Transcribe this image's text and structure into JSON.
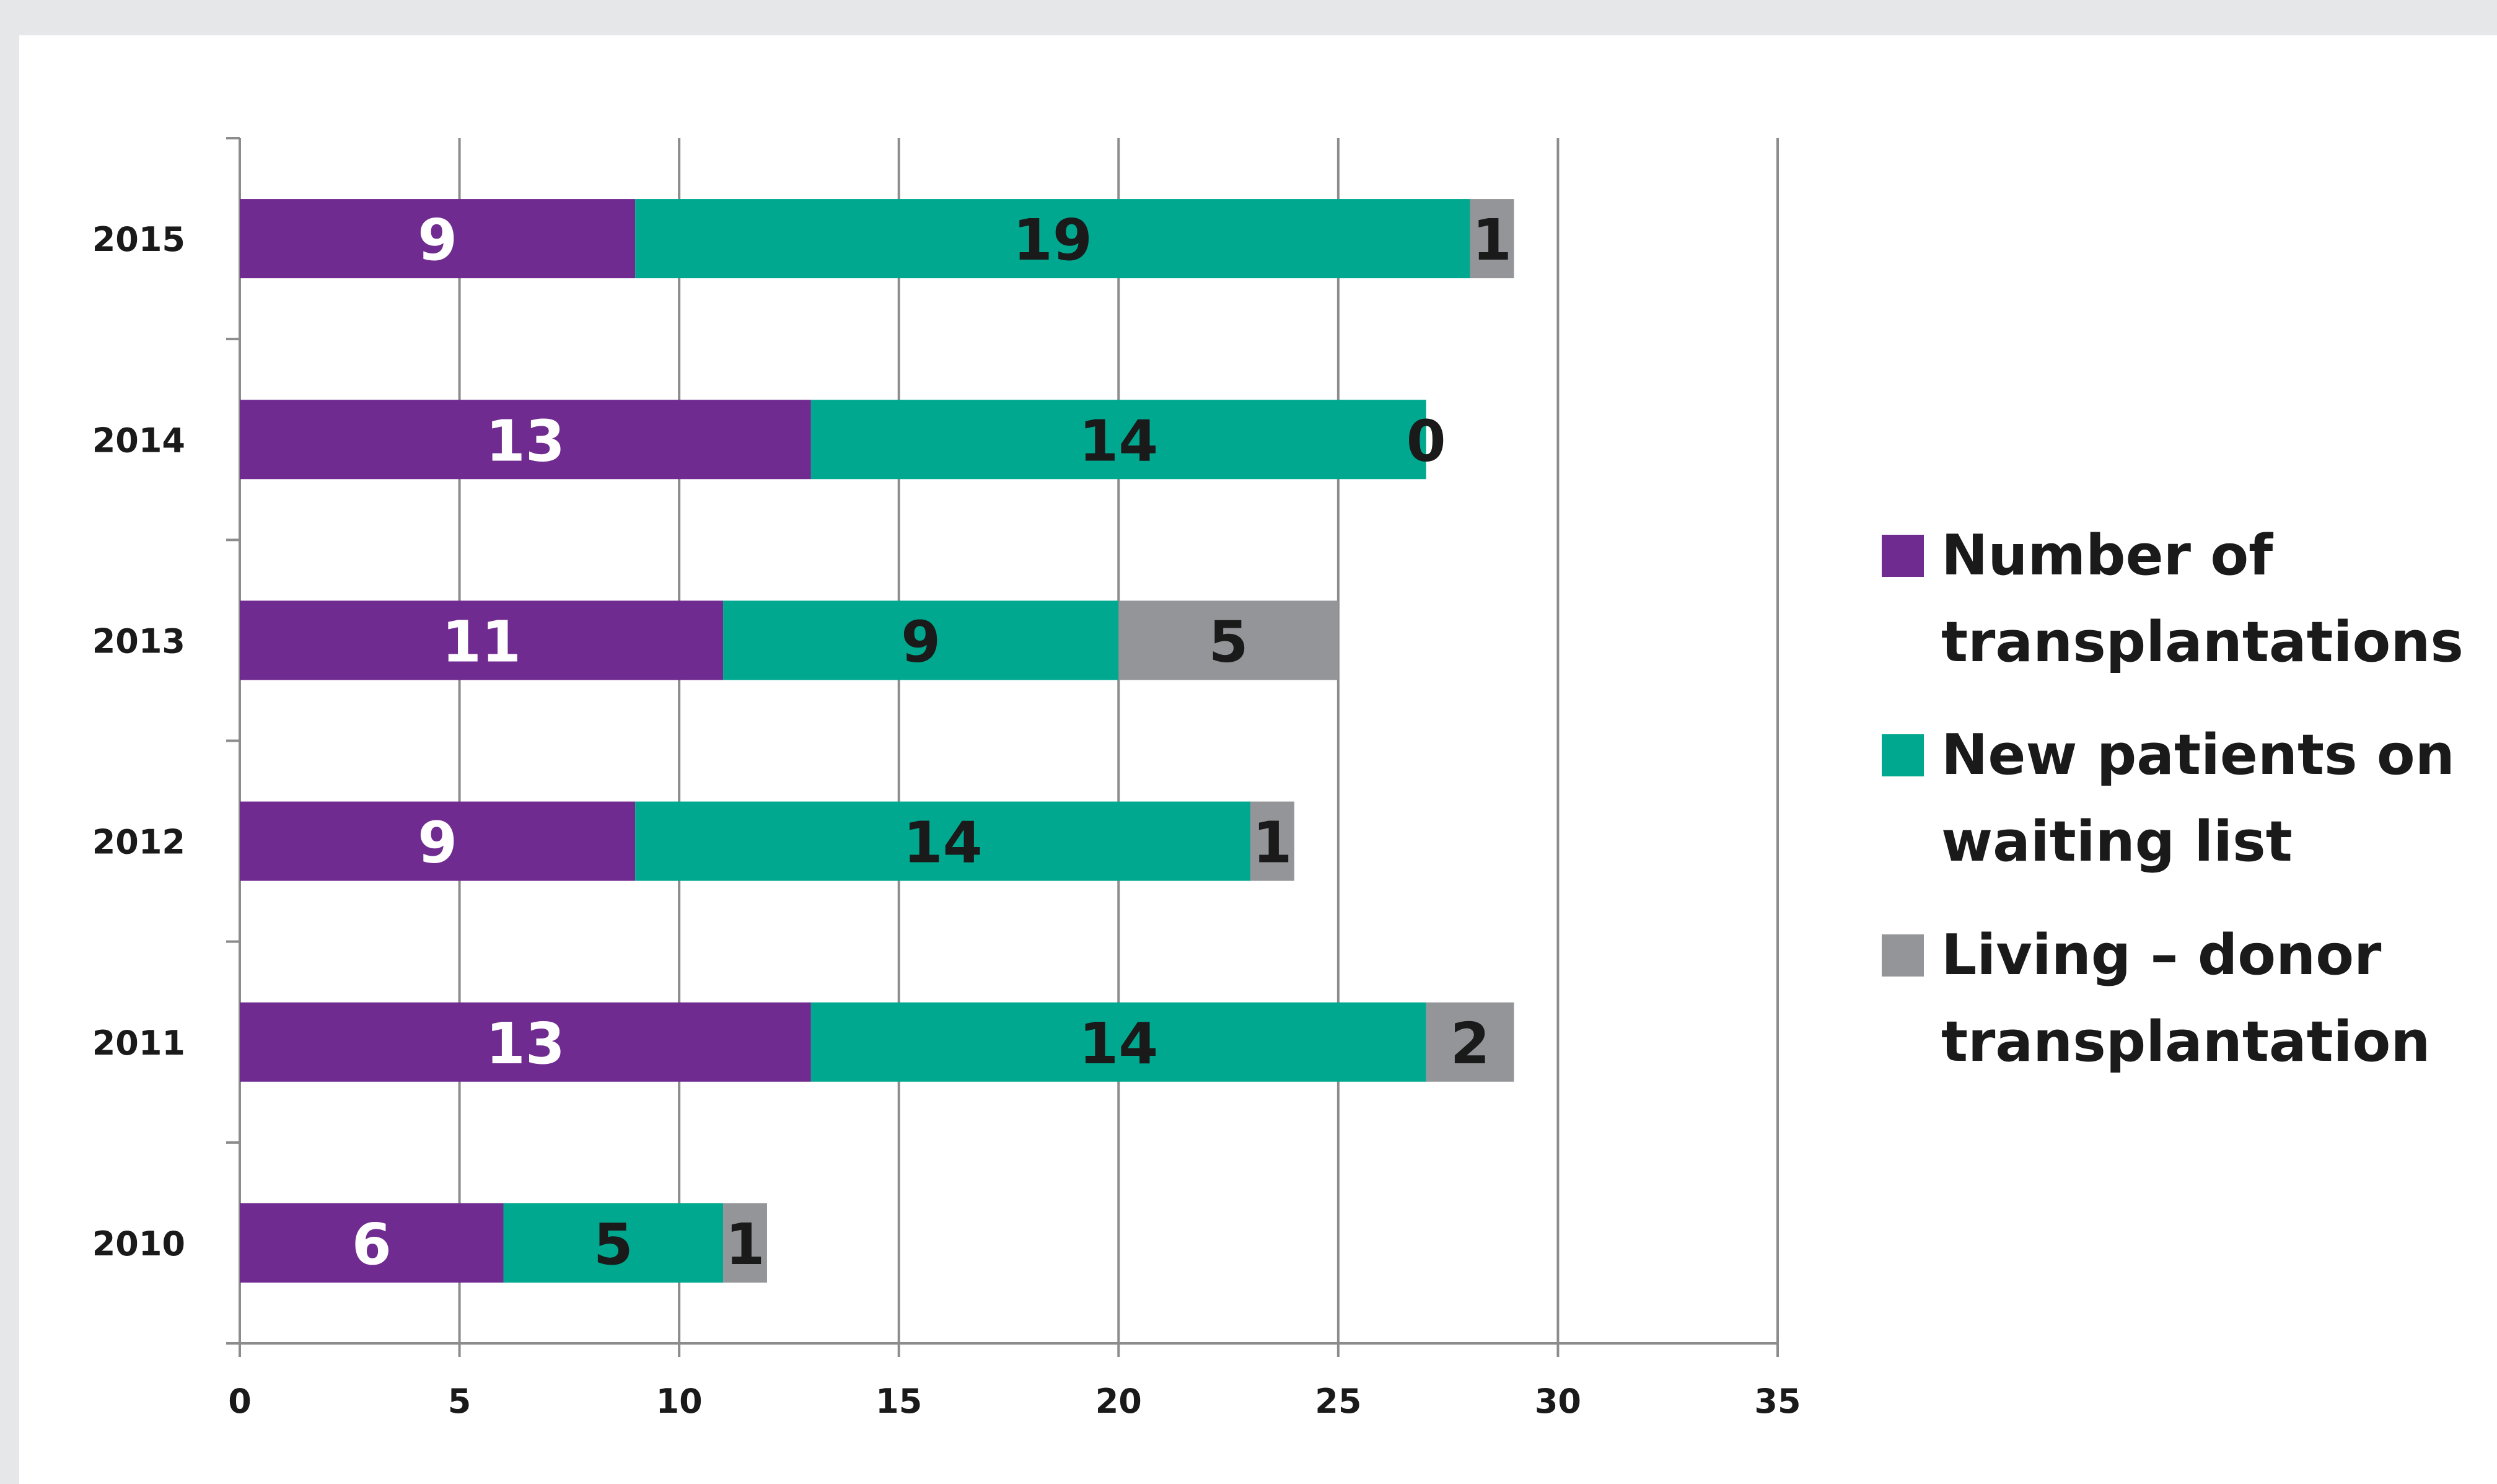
{
  "chart_data": {
    "type": "bar",
    "orientation": "horizontal",
    "stacked": true,
    "categories": [
      "2015",
      "2014",
      "2013",
      "2012",
      "2011",
      "2010"
    ],
    "series": [
      {
        "name": "Number of transplantations",
        "color": "#702b90",
        "label_color": "#ffffff",
        "values": [
          9,
          13,
          11,
          9,
          13,
          6
        ]
      },
      {
        "name": "New patients on waiting list",
        "color": "#00a88f",
        "label_color": "#1a1a1a",
        "values": [
          19,
          14,
          9,
          14,
          14,
          5
        ]
      },
      {
        "name": "Living – donor transplantation",
        "color": "#939598",
        "label_color": "#1a1a1a",
        "values": [
          1,
          0,
          5,
          1,
          2,
          1
        ]
      }
    ],
    "legend_lines": [
      [
        "Number of",
        "transplantations"
      ],
      [
        "New patients on",
        "waiting list"
      ],
      [
        "Living – donor",
        "transplantation"
      ]
    ],
    "xlim": [
      0,
      35
    ],
    "xticks": [
      "0",
      "5",
      "10",
      "15",
      "20",
      "25",
      "30",
      "35"
    ],
    "grid": true,
    "legend_position": "right"
  }
}
